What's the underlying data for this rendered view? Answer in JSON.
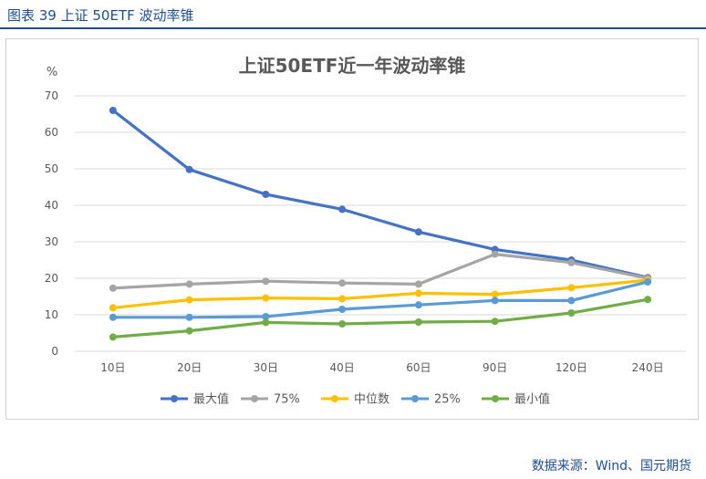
{
  "figure_caption": "图表 39  上证 50ETF 波动率锥",
  "source_text": "数据来源：Wind、国元期货",
  "colors": {
    "caption": "#1f4e8c",
    "grid": "#d9d9d9"
  },
  "chart_data": {
    "type": "line",
    "title": "上证50ETF近一年波动率锥",
    "ylabel": "%",
    "xlabel": "",
    "ylim": [
      0,
      70
    ],
    "yticks": [
      0,
      10,
      20,
      30,
      40,
      50,
      60,
      70
    ],
    "grid": true,
    "legend_position": "bottom",
    "categories": [
      "10日",
      "20日",
      "30日",
      "40日",
      "60日",
      "90日",
      "120日",
      "240日"
    ],
    "series": [
      {
        "name": "最大值",
        "color": "#4472c4",
        "values": [
          66.0,
          49.8,
          43.0,
          38.9,
          32.7,
          27.9,
          25.0,
          20.2
        ]
      },
      {
        "name": "75%",
        "color": "#a5a5a5",
        "values": [
          17.3,
          18.4,
          19.2,
          18.7,
          18.4,
          26.6,
          24.3,
          20.0
        ]
      },
      {
        "name": "中位数",
        "color": "#ffc000",
        "values": [
          11.9,
          14.1,
          14.6,
          14.4,
          15.9,
          15.6,
          17.4,
          19.5
        ]
      },
      {
        "name": "25%",
        "color": "#5b9bd5",
        "values": [
          9.3,
          9.3,
          9.5,
          11.5,
          12.7,
          13.9,
          13.9,
          19.0
        ]
      },
      {
        "name": "最小值",
        "color": "#70ad47",
        "values": [
          3.9,
          5.6,
          7.9,
          7.5,
          8.0,
          8.2,
          10.5,
          14.2
        ]
      }
    ]
  }
}
